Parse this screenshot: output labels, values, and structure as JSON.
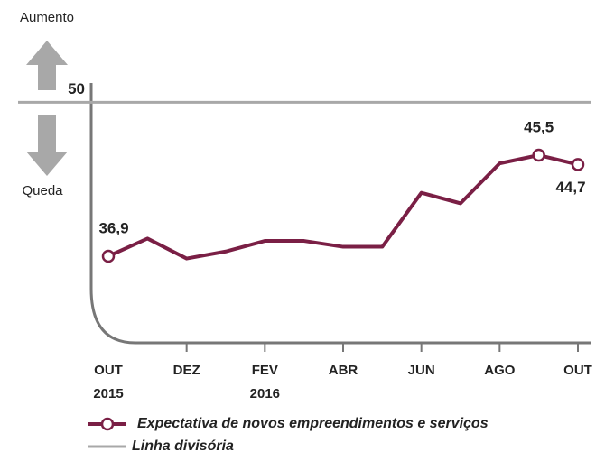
{
  "chart_data": {
    "type": "line",
    "annotations": {
      "up": "Aumento",
      "down": "Queda"
    },
    "categories": [
      "OUT\n2015",
      null,
      "DEZ",
      null,
      "FEV\n2016",
      null,
      "ABR",
      null,
      "JUN",
      null,
      "AGO",
      null,
      "OUT"
    ],
    "series": [
      {
        "name": "Expectativa de novos empreendimentos e serviços",
        "color": "#7a1f45",
        "values": [
          36.9,
          38.4,
          36.7,
          37.3,
          38.2,
          38.2,
          37.7,
          37.7,
          42.3,
          41.4,
          44.8,
          45.5,
          44.7
        ],
        "value_labels": [
          "36,9",
          null,
          null,
          null,
          null,
          null,
          null,
          null,
          null,
          null,
          null,
          "45,5",
          "44,7"
        ]
      }
    ],
    "divider": {
      "name": "Linha divisória",
      "value": 50,
      "color": "#a8a8a8"
    },
    "ylim": [
      30,
      57
    ]
  }
}
